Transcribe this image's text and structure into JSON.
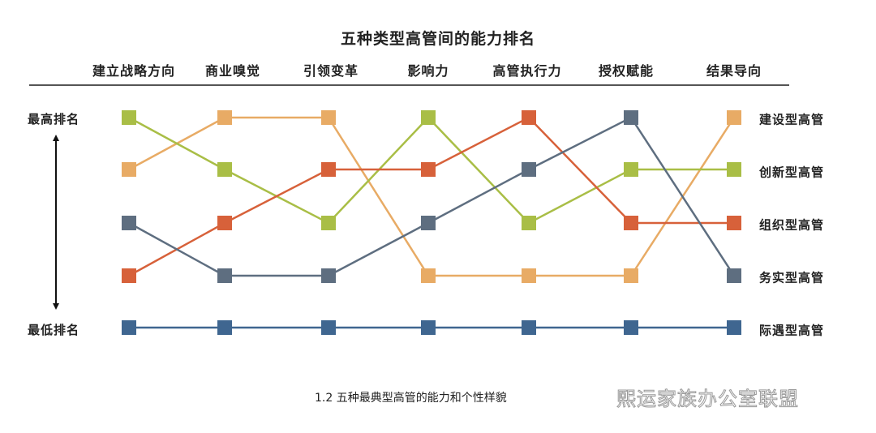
{
  "chart_data": {
    "type": "line",
    "title": "五种类型高管间的能力排名",
    "categories": [
      "建立战略方向",
      "商业嗅觉",
      "引领变革",
      "影响力",
      "高管执行力",
      "授权赋能",
      "结果导向"
    ],
    "ylabel_top": "最高排名",
    "ylabel_bottom": "最低排名",
    "y_inverted": true,
    "ylim": [
      1,
      5
    ],
    "series": [
      {
        "name": "建设型高管",
        "color": "#E8AB65",
        "values": [
          2,
          1,
          1,
          4,
          4,
          4,
          1
        ]
      },
      {
        "name": "创新型高管",
        "color": "#A9BE46",
        "values": [
          1,
          2,
          3,
          1,
          3,
          2,
          2
        ]
      },
      {
        "name": "组织型高管",
        "color": "#D7613A",
        "values": [
          4,
          3,
          2,
          2,
          1,
          3,
          3
        ]
      },
      {
        "name": "务实型高管",
        "color": "#5E6E80",
        "values": [
          3,
          4,
          4,
          3,
          2,
          1,
          4
        ]
      },
      {
        "name": "际遇型高管",
        "color": "#3F6690",
        "values": [
          5,
          5,
          5,
          5,
          5,
          5,
          5
        ]
      }
    ],
    "legend_position": "right",
    "grid": false
  },
  "caption": "1.2 五种最典型高管的能力和个性样貌",
  "watermark": "熙运家族办公室联盟"
}
